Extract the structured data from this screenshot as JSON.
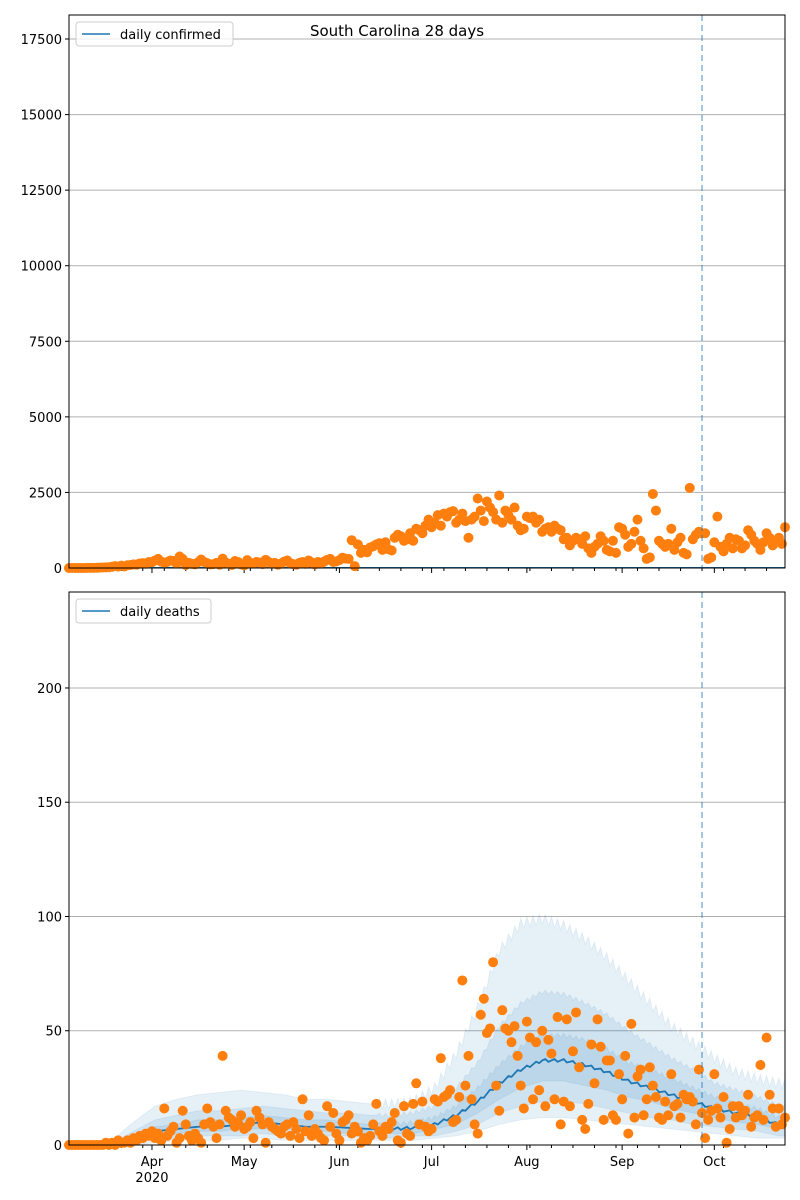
{
  "chart_data": [
    {
      "type": "scatter",
      "title": "South Carolina 28 days",
      "legend": [
        "daily confirmed"
      ],
      "legend_placement": "top-left",
      "x_start_date": "2020-03-05",
      "x_unit": "days since 2020-03-05",
      "ylim": [
        0,
        18294
      ],
      "yticks": [
        0,
        2500,
        5000,
        7500,
        10000,
        12500,
        15000,
        17500
      ],
      "grid": true,
      "forecast_cutoff_day": 206,
      "model_median_value": 10,
      "observed": [
        0,
        0,
        0,
        0,
        1,
        2,
        3,
        4,
        6,
        7,
        14,
        15,
        20,
        25,
        40,
        60,
        45,
        80,
        50,
        90,
        100,
        120,
        110,
        150,
        160,
        140,
        200,
        190,
        250,
        300,
        210,
        180,
        200,
        250,
        230,
        150,
        380,
        300,
        100,
        170,
        140,
        120,
        190,
        280,
        200,
        160,
        120,
        130,
        170,
        110,
        310,
        180,
        140,
        100,
        230,
        200,
        120,
        90,
        260,
        170,
        150,
        200,
        180,
        130,
        270,
        200,
        140,
        170,
        110,
        150,
        210,
        250,
        160,
        130,
        110,
        170,
        200,
        140,
        250,
        180,
        120,
        200,
        160,
        210,
        270,
        300,
        200,
        220,
        260,
        340,
        310,
        300,
        920,
        60,
        780,
        500,
        600,
        520,
        680,
        720,
        780,
        820,
        600,
        850,
        620,
        580,
        1000,
        1100,
        1050,
        900,
        950,
        1150,
        900,
        1300,
        1250,
        1150,
        1400,
        1600,
        1350,
        1500,
        1750,
        1400,
        1800,
        1700,
        1850,
        1880,
        1500,
        1600,
        1800,
        1550,
        1000,
        1600,
        1700,
        2300,
        1900,
        1550,
        2200,
        2000,
        1850,
        1600,
        2400,
        1500,
        1900,
        1750,
        1600,
        2000,
        1400,
        1250,
        1300,
        1700,
        1650,
        1700,
        1500,
        1600,
        1200,
        1300,
        1350,
        1200,
        1400,
        1300,
        1250,
        950,
        1000,
        750,
        900,
        1000,
        950,
        800,
        1050,
        650,
        500,
        700,
        800,
        1050,
        900,
        600,
        550,
        900,
        500,
        1350,
        1300,
        1100,
        700,
        800,
        1200,
        1600,
        900,
        650,
        300,
        350,
        2450,
        1900,
        900,
        800,
        700,
        800,
        1300,
        600,
        850,
        1000,
        500,
        450,
        2650,
        950,
        1100,
        1200,
        1150,
        1150,
        300,
        350,
        850,
        1700,
        700,
        550,
        800,
        1000,
        650,
        950,
        900,
        650,
        750,
        1250,
        1100,
        900,
        800,
        600,
        850,
        1150,
        1000,
        750,
        900,
        1000,
        800,
        1350
      ]
    },
    {
      "type": "scatter",
      "legend": [
        "daily deaths"
      ],
      "legend_placement": "top-left",
      "x_start_date": "2020-03-05",
      "x_unit": "days since 2020-03-05",
      "xticks": [
        {
          "day": 27,
          "label": "Apr",
          "sub": "2020"
        },
        {
          "day": 57,
          "label": "May"
        },
        {
          "day": 88,
          "label": "Jun"
        },
        {
          "day": 118,
          "label": "Jul"
        },
        {
          "day": 149,
          "label": "Aug"
        },
        {
          "day": 180,
          "label": "Sep"
        },
        {
          "day": 210,
          "label": "Oct"
        }
      ],
      "ylim": [
        0,
        242
      ],
      "yticks": [
        0,
        50,
        100,
        150,
        200
      ],
      "grid": true,
      "forecast_cutoff_day": 206,
      "band_step_days": 7,
      "median": [
        0,
        0,
        0.5,
        3,
        6,
        7,
        8,
        8,
        9,
        10,
        9,
        8,
        8,
        7.5,
        7,
        7,
        7.5,
        9,
        13,
        19,
        27,
        33,
        37,
        37,
        35,
        32,
        28,
        25,
        22,
        19,
        16,
        14,
        12,
        9
      ],
      "bands": [
        {
          "lo": [
            0,
            0,
            0,
            0,
            1,
            2,
            2,
            2,
            3,
            3,
            2,
            2,
            2,
            2,
            2,
            2,
            2,
            3,
            4,
            6,
            9,
            11,
            12,
            12,
            11,
            10,
            9,
            8,
            7,
            6,
            5,
            4,
            3,
            3
          ],
          "hi": [
            0,
            0,
            2,
            10,
            17,
            20,
            22,
            23,
            24,
            23,
            22,
            20,
            20,
            19,
            18,
            18,
            19,
            25,
            40,
            60,
            85,
            97,
            99,
            96,
            90,
            82,
            72,
            62,
            52,
            45,
            38,
            32,
            29,
            27
          ]
        },
        {
          "lo": [
            0,
            0,
            0,
            1,
            3,
            3,
            4,
            4,
            4,
            5,
            4,
            4,
            4,
            4,
            3,
            3,
            4,
            4,
            6,
            9,
            14,
            17,
            19,
            19,
            18,
            16,
            14,
            12,
            11,
            9,
            8,
            7,
            6,
            4
          ],
          "hi": [
            0,
            0,
            1,
            6,
            11,
            13,
            15,
            15,
            16,
            17,
            16,
            15,
            14,
            14,
            13,
            13,
            14,
            17,
            25,
            36,
            52,
            62,
            67,
            66,
            62,
            57,
            50,
            44,
            38,
            33,
            27,
            24,
            21,
            17
          ]
        },
        {
          "lo": [
            0,
            0,
            0,
            2,
            4,
            5,
            6,
            6,
            7,
            7,
            7,
            6,
            6,
            5,
            5,
            5,
            5,
            7,
            9,
            14,
            20,
            25,
            28,
            28,
            26,
            24,
            21,
            19,
            16,
            14,
            12,
            10,
            9,
            7
          ],
          "hi": [
            0,
            0,
            1,
            4,
            8,
            9,
            11,
            11,
            12,
            13,
            12,
            11,
            11,
            10,
            9,
            9,
            10,
            12,
            17,
            25,
            35,
            43,
            48,
            48,
            46,
            42,
            36,
            33,
            29,
            25,
            21,
            18,
            16,
            12
          ]
        }
      ],
      "observed": [
        0,
        0,
        0,
        0,
        0,
        0,
        0,
        0,
        0,
        0,
        0,
        0,
        1,
        0,
        1,
        0,
        2,
        1,
        1,
        2,
        1,
        3,
        2,
        4,
        3,
        5,
        4,
        6,
        3,
        5,
        2,
        16,
        4,
        6,
        8,
        1,
        3,
        15,
        9,
        4,
        2,
        5,
        3,
        1,
        9,
        16,
        10,
        8,
        3,
        9,
        39,
        15,
        12,
        11,
        8,
        10,
        13,
        7,
        8,
        10,
        3,
        15,
        12,
        9,
        1,
        10,
        8,
        7,
        6,
        5,
        8,
        9,
        4,
        10,
        7,
        3,
        20,
        6,
        13,
        4,
        7,
        5,
        3,
        2,
        17,
        8,
        14,
        5,
        2,
        10,
        11,
        13,
        5,
        8,
        6,
        1,
        3,
        2,
        4,
        9,
        18,
        6,
        4,
        8,
        7,
        10,
        14,
        2,
        1,
        17,
        5,
        4,
        18,
        27,
        9,
        19,
        8,
        6,
        7,
        20,
        19,
        38,
        21,
        22,
        24,
        10,
        11,
        21,
        72,
        26,
        39,
        20,
        9,
        5,
        57,
        64,
        49,
        51,
        80,
        26,
        15,
        59,
        51,
        50,
        45,
        52,
        39,
        26,
        16,
        54,
        47,
        20,
        45,
        24,
        50,
        17,
        46,
        40,
        20,
        56,
        9,
        19,
        55,
        17,
        41,
        58,
        34,
        11,
        7,
        18,
        44,
        27,
        55,
        43,
        11,
        37,
        37,
        13,
        11,
        31,
        20,
        39,
        5,
        53,
        12,
        30,
        33,
        13,
        20,
        34,
        26,
        21,
        12,
        11,
        19,
        13,
        31,
        17,
        18,
        12,
        22,
        20,
        21,
        19,
        9,
        33,
        14,
        3,
        11,
        15,
        31,
        16,
        12,
        21,
        1,
        7,
        17,
        12,
        17,
        13,
        15,
        22,
        8,
        12,
        13,
        35,
        11,
        47,
        22,
        16,
        8,
        16,
        9,
        12
      ]
    }
  ],
  "colors": {
    "line": "#1f77b4",
    "points": "#ff7f0e",
    "band": "#1f77b4",
    "grid": "#b0b0b0"
  }
}
